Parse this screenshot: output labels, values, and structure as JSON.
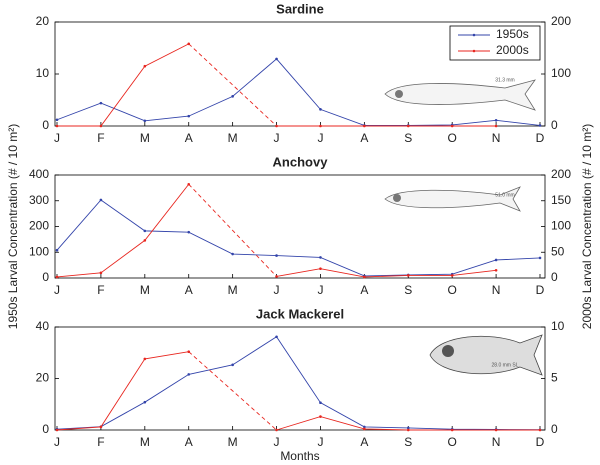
{
  "chart_data": [
    {
      "type": "line",
      "title": "Sardine",
      "annotation": "31.3 mm",
      "categories": [
        "J",
        "F",
        "M",
        "A",
        "M",
        "J",
        "J",
        "A",
        "S",
        "O",
        "N",
        "D"
      ],
      "ylim": [
        0,
        20
      ],
      "yticks": [
        0,
        10,
        20
      ],
      "y2lim": [
        0,
        200
      ],
      "y2ticks": [
        0,
        100,
        200
      ],
      "legend": "upper right",
      "series": [
        {
          "name": "1950s",
          "color": "#3344aa",
          "values": [
            1.2,
            4.4,
            1.0,
            1.9,
            5.7,
            12.9,
            3.2,
            0.1,
            0.1,
            0.2,
            1.1,
            0.1
          ]
        },
        {
          "name": "2000s",
          "color": "#e8261f",
          "axis": "y2",
          "values": [
            0,
            0,
            115,
            158,
            null,
            0,
            0,
            0,
            0,
            0,
            0,
            null
          ]
        }
      ]
    },
    {
      "type": "line",
      "title": "Anchovy",
      "annotation": "51.0 mm",
      "ylabel": "1950s Larval Concentration (# / 10 m²)",
      "y2label": "2000s Larval Concentration (# / 10 m²)",
      "categories": [
        "J",
        "F",
        "M",
        "A",
        "M",
        "J",
        "J",
        "A",
        "S",
        "O",
        "N",
        "D"
      ],
      "ylim": [
        0,
        400
      ],
      "yticks": [
        0,
        100,
        200,
        300,
        400
      ],
      "y2lim": [
        0,
        200
      ],
      "y2ticks": [
        0,
        50,
        100,
        150,
        200
      ],
      "series": [
        {
          "name": "1950s",
          "color": "#3344aa",
          "values": [
            108,
            303,
            183,
            178,
            93,
            87,
            80,
            8,
            12,
            15,
            70,
            78
          ]
        },
        {
          "name": "2000s",
          "color": "#e8261f",
          "axis": "y2",
          "values": [
            2,
            10,
            73,
            182,
            null,
            3,
            18,
            2,
            5,
            5,
            15,
            null
          ]
        }
      ]
    },
    {
      "type": "line",
      "title": "Jack Mackerel",
      "annotation": "28.0 mm SL",
      "xlabel": "Months",
      "categories": [
        "J",
        "F",
        "M",
        "A",
        "M",
        "J",
        "J",
        "A",
        "S",
        "O",
        "N",
        "D"
      ],
      "ylim": [
        0,
        40
      ],
      "yticks": [
        0,
        20,
        40
      ],
      "y2lim": [
        0,
        10
      ],
      "y2ticks": [
        0,
        5,
        10
      ],
      "series": [
        {
          "name": "1950s",
          "color": "#3344aa",
          "values": [
            0.3,
            1.3,
            10.8,
            21.6,
            25.3,
            36.2,
            10.6,
            1.2,
            0.8,
            0.3,
            0.2,
            0.1
          ]
        },
        {
          "name": "2000s",
          "color": "#e8261f",
          "axis": "y2",
          "values": [
            0,
            0.3,
            6.9,
            7.6,
            null,
            0,
            1.3,
            0.1,
            0,
            0,
            0,
            0
          ]
        }
      ]
    }
  ]
}
